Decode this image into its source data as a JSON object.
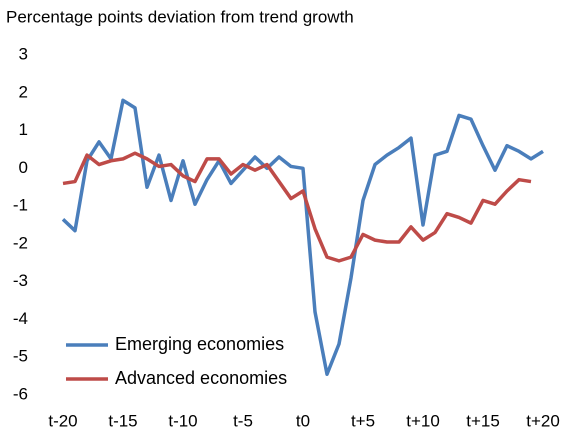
{
  "chart_data": {
    "type": "line",
    "title": "Percentage points deviation from trend growth",
    "categories": [
      "t-20",
      null,
      null,
      null,
      null,
      "t-15",
      null,
      null,
      null,
      null,
      "t-10",
      null,
      null,
      null,
      null,
      "t-5",
      null,
      null,
      null,
      null,
      "t0",
      null,
      null,
      null,
      null,
      "t+5",
      null,
      null,
      null,
      null,
      "t+10",
      null,
      null,
      null,
      null,
      "t+15",
      null,
      null,
      null,
      null,
      "t+20"
    ],
    "series": [
      {
        "name": "Emerging economies",
        "color": "#4a7ebb",
        "values": [
          -1.35,
          -1.65,
          0.2,
          0.7,
          0.25,
          1.8,
          1.6,
          -0.5,
          0.35,
          -0.85,
          0.2,
          -0.95,
          -0.3,
          0.2,
          -0.4,
          -0.05,
          0.3,
          0.0,
          0.3,
          0.05,
          0.0,
          -3.8,
          -5.45,
          -4.65,
          -2.9,
          -0.85,
          0.1,
          0.35,
          0.55,
          0.8,
          -1.5,
          0.35,
          0.45,
          1.4,
          1.3,
          0.6,
          -0.05,
          0.6,
          0.45,
          0.25,
          0.45
        ]
      },
      {
        "name": "Advanced economies",
        "color": "#be4b48",
        "values": [
          -0.4,
          -0.35,
          0.35,
          0.1,
          0.2,
          0.25,
          0.4,
          0.25,
          0.05,
          0.1,
          -0.2,
          -0.35,
          0.25,
          0.25,
          -0.15,
          0.1,
          -0.05,
          0.1,
          -0.35,
          -0.8,
          -0.6,
          -1.6,
          -2.35,
          -2.45,
          -2.35,
          -1.75,
          -1.9,
          -1.95,
          -1.95,
          -1.55,
          -1.9,
          -1.7,
          -1.2,
          -1.3,
          -1.45,
          -0.85,
          -0.95,
          -0.6,
          -0.3,
          -0.35,
          null
        ]
      }
    ],
    "ylim": [
      -6,
      3
    ],
    "yticks": [
      -6,
      -5,
      -4,
      -3,
      -2,
      -1,
      0,
      1,
      2,
      3
    ],
    "grid": false,
    "legend": "lower left"
  }
}
